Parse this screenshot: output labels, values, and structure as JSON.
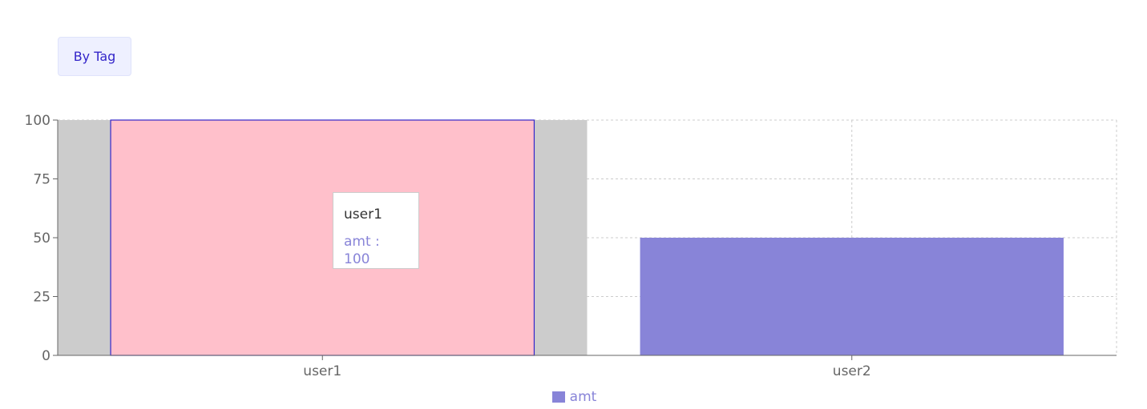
{
  "toolbar": {
    "by_tag_label": "By Tag"
  },
  "chart_data": {
    "type": "bar",
    "categories": [
      "user1",
      "user2"
    ],
    "series": [
      {
        "name": "amt",
        "values": [
          100,
          50
        ],
        "color": "#8884d8"
      }
    ],
    "ylim": [
      0,
      100
    ],
    "yticks": [
      0,
      25,
      50,
      75,
      100
    ],
    "grid": true,
    "legend": "bottom-center",
    "active_index": 0,
    "active_bar_fill": "#ffc0cb",
    "active_bar_stroke": "#3325c9",
    "cursor_fill": "#cccccc",
    "axis_color": "#666666",
    "grid_color": "#cccccc"
  },
  "tooltip": {
    "label": "user1",
    "item_name": "amt",
    "separator": " : ",
    "item_value": "100",
    "item_color": "#8884d8"
  },
  "legend": {
    "items": [
      {
        "label": "amt",
        "color": "#8884d8"
      }
    ]
  }
}
